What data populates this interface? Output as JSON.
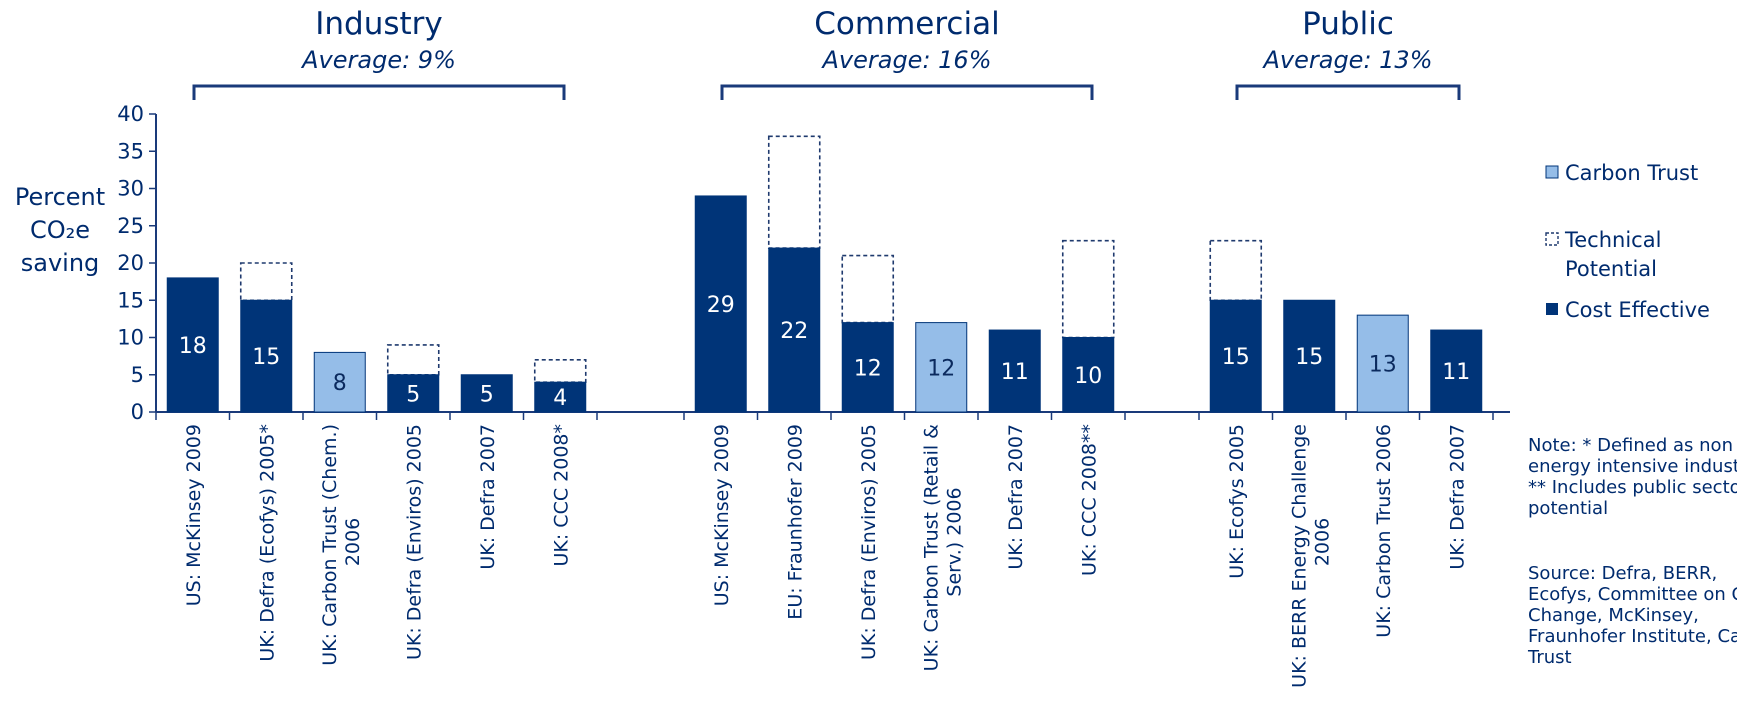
{
  "chart_data": {
    "type": "bar",
    "stacked": true,
    "ylabel": [
      "Percent",
      "CO₂e",
      "saving"
    ],
    "ylim": [
      0,
      40
    ],
    "yticks": [
      0,
      5,
      10,
      15,
      20,
      25,
      30,
      35,
      40
    ],
    "groups": [
      {
        "title": "Industry",
        "subtitle": "Average: 9%",
        "categories": [
          {
            "label": [
              "US: McKinsey 2009"
            ],
            "source": "Cost Effective",
            "cost_effective": 18,
            "technical_potential": 18,
            "value_label": "18"
          },
          {
            "label": [
              "UK: Defra (Ecofys) 2005*"
            ],
            "source": "Cost Effective",
            "cost_effective": 15,
            "technical_potential": 20,
            "value_label": "15"
          },
          {
            "label": [
              "UK: Carbon Trust (Chem.)",
              "2006"
            ],
            "source": "Carbon Trust",
            "cost_effective": 8,
            "technical_potential": 8,
            "value_label": "8"
          },
          {
            "label": [
              "UK: Defra (Enviros) 2005"
            ],
            "source": "Cost Effective",
            "cost_effective": 5,
            "technical_potential": 9,
            "value_label": "5"
          },
          {
            "label": [
              "UK: Defra 2007"
            ],
            "source": "Cost Effective",
            "cost_effective": 5,
            "technical_potential": 5,
            "value_label": "5"
          },
          {
            "label": [
              "UK: CCC 2008*"
            ],
            "source": "Cost Effective",
            "cost_effective": 4,
            "technical_potential": 7,
            "value_label": "4"
          }
        ]
      },
      {
        "title": "Commercial",
        "subtitle": "Average: 16%",
        "categories": [
          {
            "label": [
              "US: McKinsey 2009"
            ],
            "source": "Cost Effective",
            "cost_effective": 29,
            "technical_potential": 29,
            "value_label": "29"
          },
          {
            "label": [
              "EU: Fraunhofer 2009"
            ],
            "source": "Cost Effective",
            "cost_effective": 22,
            "technical_potential": 37,
            "value_label": "22"
          },
          {
            "label": [
              "UK: Defra (Enviros) 2005"
            ],
            "source": "Cost Effective",
            "cost_effective": 12,
            "technical_potential": 21,
            "value_label": "12"
          },
          {
            "label": [
              "UK: Carbon Trust (Retail &",
              "Serv.) 2006"
            ],
            "source": "Carbon Trust",
            "cost_effective": 12,
            "technical_potential": 12,
            "value_label": "12"
          },
          {
            "label": [
              "UK: Defra 2007"
            ],
            "source": "Cost Effective",
            "cost_effective": 11,
            "technical_potential": 11,
            "value_label": "11"
          },
          {
            "label": [
              "UK: CCC 2008**"
            ],
            "source": "Cost Effective",
            "cost_effective": 10,
            "technical_potential": 23,
            "value_label": "10"
          }
        ]
      },
      {
        "title": "Public",
        "subtitle": "Average: 13%",
        "categories": [
          {
            "label": [
              "UK: Ecofys 2005"
            ],
            "source": "Cost Effective",
            "cost_effective": 15,
            "technical_potential": 23,
            "value_label": "15"
          },
          {
            "label": [
              "UK: BERR Energy Challenge",
              "2006"
            ],
            "source": "Cost Effective",
            "cost_effective": 15,
            "technical_potential": 15,
            "value_label": "15"
          },
          {
            "label": [
              "UK: Carbon Trust 2006"
            ],
            "source": "Carbon Trust",
            "cost_effective": 13,
            "technical_potential": 13,
            "value_label": "13"
          },
          {
            "label": [
              "UK: Defra 2007"
            ],
            "source": "Cost Effective",
            "cost_effective": 11,
            "technical_potential": 11,
            "value_label": "11"
          }
        ]
      }
    ],
    "legend": {
      "placement": "right",
      "items": [
        {
          "name": "Carbon Trust",
          "style": "light"
        },
        {
          "name": "Technical Potential",
          "lines": [
            "Technical",
            "Potential"
          ],
          "style": "dashed"
        },
        {
          "name": "Cost Effective",
          "style": "dark"
        }
      ]
    },
    "notes": [
      "Note: * Defined as non",
      "energy intensive industry",
      "** Includes public sector",
      "potential"
    ],
    "source": [
      "Source: Defra, BERR,",
      "Ecofys, Committee on Climate",
      "Change, McKinsey,",
      "Fraunhofer Institute, Carbon",
      "Trust"
    ],
    "grid": false,
    "colors": {
      "cost_effective": "#003478",
      "carbon_trust": "#95bde8",
      "technical_potential_border": "#1f3a6e",
      "axis": "#1a3a7a",
      "text": "#002b6e"
    }
  }
}
